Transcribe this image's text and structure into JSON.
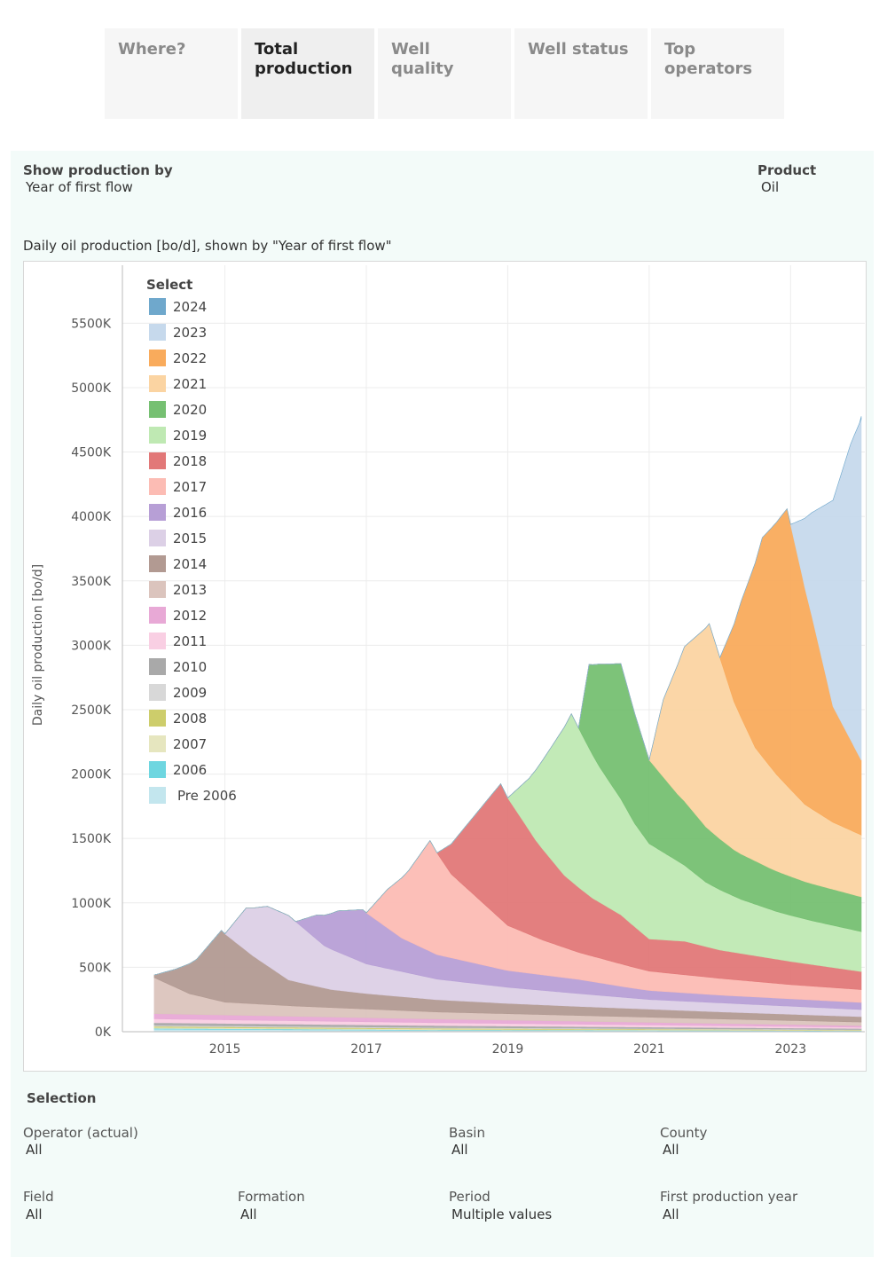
{
  "tabs": [
    {
      "label": "Where?",
      "active": false
    },
    {
      "label": "Total production",
      "active": true
    },
    {
      "label": "Well quality",
      "active": false
    },
    {
      "label": "Well status",
      "active": false
    },
    {
      "label": "Top operators",
      "active": false
    }
  ],
  "controls": {
    "show_by_label": "Show production by",
    "show_by_value": "Year of first flow",
    "product_label": "Product",
    "product_value": "Oil"
  },
  "legend": {
    "title": "Select",
    "items": [
      {
        "label": "2024",
        "color": "#6fa8cc"
      },
      {
        "label": "2023",
        "color": "#c6d9ec"
      },
      {
        "label": "2022",
        "color": "#f9ab5c"
      },
      {
        "label": "2021",
        "color": "#fbd4a2"
      },
      {
        "label": "2020",
        "color": "#76c072"
      },
      {
        "label": "2019",
        "color": "#bfe9b3"
      },
      {
        "label": "2018",
        "color": "#e27878"
      },
      {
        "label": "2017",
        "color": "#fcbcb4"
      },
      {
        "label": "2016",
        "color": "#b79fd6"
      },
      {
        "label": "2015",
        "color": "#dcd0e6"
      },
      {
        "label": "2014",
        "color": "#b29a92"
      },
      {
        "label": "2013",
        "color": "#dbc4bd"
      },
      {
        "label": "2012",
        "color": "#e8a9d6"
      },
      {
        "label": "2011",
        "color": "#f9cfe3"
      },
      {
        "label": "2010",
        "color": "#a9a9a9"
      },
      {
        "label": "2009",
        "color": "#d8d8d8"
      },
      {
        "label": "2008",
        "color": "#cdcd6b"
      },
      {
        "label": "2007",
        "color": "#e6e6bf"
      },
      {
        "label": "2006",
        "color": "#6ed6e0"
      },
      {
        "label": "Pre 2006",
        "color": "#c3e6ee"
      }
    ]
  },
  "chart_data": {
    "type": "area",
    "title": "Daily oil production [bo/d], shown by \"Year of first flow\"",
    "ylabel": "Daily oil production [bo/d]",
    "xlabel": "",
    "xlim": [
      2013.55,
      2024.05
    ],
    "ylim": [
      0,
      5950000
    ],
    "yticks": [
      0,
      500000,
      1000000,
      1500000,
      2000000,
      2500000,
      3000000,
      3500000,
      4000000,
      4500000,
      5000000,
      5500000
    ],
    "ytick_labels": [
      "0K",
      "500K",
      "1000K",
      "1500K",
      "2000K",
      "2500K",
      "3000K",
      "3500K",
      "4000K",
      "4500K",
      "5000K",
      "5500K"
    ],
    "xticks": [
      2015,
      2017,
      2019,
      2021,
      2023
    ],
    "xtick_labels": [
      "2015",
      "2017",
      "2019",
      "2021",
      "2023"
    ],
    "grid": true,
    "legend_position": "top-left inside",
    "stacked": true,
    "series": [
      {
        "name": "Pre 2006",
        "color": "#c3e6ee",
        "start": 2014.0,
        "points": [
          [
            2014.0,
            20000
          ],
          [
            2018,
            10000
          ],
          [
            2024.0,
            6000
          ]
        ]
      },
      {
        "name": "2006",
        "color": "#6ed6e0",
        "start": 2014.0,
        "points": [
          [
            2014.0,
            6000
          ],
          [
            2024.0,
            2000
          ]
        ]
      },
      {
        "name": "2007",
        "color": "#e6e6bf",
        "start": 2014.0,
        "points": [
          [
            2014.0,
            8000
          ],
          [
            2024.0,
            3000
          ]
        ]
      },
      {
        "name": "2008",
        "color": "#cdcd6b",
        "start": 2014.0,
        "points": [
          [
            2014.0,
            8000
          ],
          [
            2024.0,
            3000
          ]
        ]
      },
      {
        "name": "2009",
        "color": "#d8d8d8",
        "start": 2014.0,
        "points": [
          [
            2014.0,
            8000
          ],
          [
            2024.0,
            3000
          ]
        ]
      },
      {
        "name": "2010",
        "color": "#a9a9a9",
        "start": 2014.0,
        "points": [
          [
            2014.0,
            20000
          ],
          [
            2024.0,
            8000
          ]
        ]
      },
      {
        "name": "2011",
        "color": "#f9cfe3",
        "start": 2014.0,
        "points": [
          [
            2014.0,
            30000
          ],
          [
            2024.0,
            10000
          ]
        ]
      },
      {
        "name": "2012",
        "color": "#e8a9d6",
        "start": 2014.0,
        "points": [
          [
            2014.0,
            40000
          ],
          [
            2024.0,
            12000
          ]
        ]
      },
      {
        "name": "2013",
        "color": "#dbc4bd",
        "start": 2014.0,
        "points": [
          [
            2014.0,
            280000
          ],
          [
            2014.5,
            160000
          ],
          [
            2015.0,
            100000
          ],
          [
            2016,
            80000
          ],
          [
            2018,
            55000
          ],
          [
            2020,
            45000
          ],
          [
            2022,
            35000
          ],
          [
            2024.0,
            28000
          ]
        ]
      },
      {
        "name": "2014",
        "color": "#b29a92",
        "start": 2014.0,
        "points": [
          [
            2014.0,
            20000
          ],
          [
            2014.3,
            140000
          ],
          [
            2014.6,
            280000
          ],
          [
            2014.95,
            550000
          ],
          [
            2015.4,
            370000
          ],
          [
            2015.9,
            200000
          ],
          [
            2016.5,
            140000
          ],
          [
            2017,
            120000
          ],
          [
            2018,
            95000
          ],
          [
            2019,
            80000
          ],
          [
            2020,
            70000
          ],
          [
            2022,
            55000
          ],
          [
            2024.0,
            42000
          ]
        ]
      },
      {
        "name": "2015",
        "color": "#dcd0e6",
        "start": 2015.0,
        "points": [
          [
            2015.0,
            0
          ],
          [
            2015.3,
            330000
          ],
          [
            2015.6,
            460000
          ],
          [
            2015.9,
            500000
          ],
          [
            2016.4,
            330000
          ],
          [
            2017,
            230000
          ],
          [
            2018,
            160000
          ],
          [
            2019,
            125000
          ],
          [
            2020,
            100000
          ],
          [
            2021,
            75000
          ],
          [
            2022,
            70000
          ],
          [
            2024.0,
            55000
          ]
        ]
      },
      {
        "name": "2016",
        "color": "#b79fd6",
        "start": 2016.0,
        "points": [
          [
            2016.0,
            0
          ],
          [
            2016.3,
            190000
          ],
          [
            2016.6,
            320000
          ],
          [
            2016.95,
            410000
          ],
          [
            2017.5,
            260000
          ],
          [
            2018,
            190000
          ],
          [
            2019,
            130000
          ],
          [
            2020,
            110000
          ],
          [
            2020.7,
            80000
          ],
          [
            2021,
            70000
          ],
          [
            2022,
            60000
          ],
          [
            2024.0,
            55000
          ]
        ]
      },
      {
        "name": "2017",
        "color": "#fcbcb4",
        "start": 2017.0,
        "points": [
          [
            2017.0,
            0
          ],
          [
            2017.3,
            300000
          ],
          [
            2017.6,
            550000
          ],
          [
            2017.9,
            860000
          ],
          [
            2018.2,
            650000
          ],
          [
            2018.6,
            500000
          ],
          [
            2019,
            350000
          ],
          [
            2019.5,
            270000
          ],
          [
            2020,
            210000
          ],
          [
            2020.5,
            180000
          ],
          [
            2021,
            150000
          ],
          [
            2022,
            130000
          ],
          [
            2023,
            110000
          ],
          [
            2024.0,
            100000
          ]
        ]
      },
      {
        "name": "2018",
        "color": "#e27878",
        "start": 2018.0,
        "points": [
          [
            2018.0,
            0
          ],
          [
            2018.3,
            350000
          ],
          [
            2018.6,
            700000
          ],
          [
            2018.9,
            1050000
          ],
          [
            2019.4,
            750000
          ],
          [
            2019.8,
            560000
          ],
          [
            2020.2,
            450000
          ],
          [
            2020.6,
            380000
          ],
          [
            2021,
            250000
          ],
          [
            2021.5,
            260000
          ],
          [
            2022,
            220000
          ],
          [
            2022.5,
            200000
          ],
          [
            2023,
            180000
          ],
          [
            2023.5,
            160000
          ],
          [
            2024.0,
            140000
          ]
        ]
      },
      {
        "name": "2019",
        "color": "#bfe9b3",
        "start": 2019.0,
        "points": [
          [
            2019.0,
            0
          ],
          [
            2019.3,
            400000
          ],
          [
            2019.6,
            850000
          ],
          [
            2019.9,
            1300000
          ],
          [
            2020.3,
            1050000
          ],
          [
            2020.8,
            800000
          ],
          [
            2021.3,
            650000
          ],
          [
            2021.8,
            500000
          ],
          [
            2022.3,
            420000
          ],
          [
            2022.8,
            370000
          ],
          [
            2023.3,
            340000
          ],
          [
            2024.0,
            310000
          ]
        ]
      },
      {
        "name": "2020",
        "color": "#76c072",
        "start": 2020.0,
        "points": [
          [
            2020.0,
            0
          ],
          [
            2020.15,
            650000
          ],
          [
            2020.3,
            800000
          ],
          [
            2020.6,
            1050000
          ],
          [
            2021.0,
            650000
          ],
          [
            2021.4,
            520000
          ],
          [
            2021.8,
            430000
          ],
          [
            2022.2,
            360000
          ],
          [
            2022.7,
            320000
          ],
          [
            2023.2,
            290000
          ],
          [
            2024.0,
            270000
          ]
        ]
      },
      {
        "name": "2021",
        "color": "#fbd4a2",
        "start": 2021.0,
        "points": [
          [
            2021.0,
            0
          ],
          [
            2021.2,
            600000
          ],
          [
            2021.5,
            1200000
          ],
          [
            2021.85,
            1600000
          ],
          [
            2022.2,
            1150000
          ],
          [
            2022.5,
            880000
          ],
          [
            2022.8,
            750000
          ],
          [
            2023.2,
            600000
          ],
          [
            2023.6,
            520000
          ],
          [
            2024.0,
            480000
          ]
        ]
      },
      {
        "name": "2022",
        "color": "#f9ab5c",
        "start": 2022.0,
        "points": [
          [
            2022.0,
            0
          ],
          [
            2022.3,
            900000
          ],
          [
            2022.6,
            1700000
          ],
          [
            2022.95,
            2150000
          ],
          [
            2023.3,
            1500000
          ],
          [
            2023.6,
            900000
          ],
          [
            2024.0,
            580000
          ]
        ]
      },
      {
        "name": "2023",
        "color": "#c6d9ec",
        "start": 2023.0,
        "points": [
          [
            2023.0,
            0
          ],
          [
            2023.3,
            800000
          ],
          [
            2023.6,
            1600000
          ],
          [
            2023.85,
            2300000
          ],
          [
            2024.0,
            2650000
          ]
        ]
      },
      {
        "name": "2024",
        "color": "#6fa8cc",
        "start": 2023.98,
        "points": [
          [
            2023.98,
            0
          ],
          [
            2024.0,
            20000
          ]
        ]
      }
    ]
  },
  "selection": {
    "title": "Selection",
    "filters": [
      {
        "label": "Operator (actual)",
        "value": "All"
      },
      {
        "label": "Basin",
        "value": "All"
      },
      {
        "label": "County",
        "value": "All"
      },
      {
        "label": "Field",
        "value": "All"
      },
      {
        "label": "Formation",
        "value": "All"
      },
      {
        "label": "Period",
        "value": "Multiple values"
      },
      {
        "label": "First production year",
        "value": "All"
      }
    ]
  }
}
